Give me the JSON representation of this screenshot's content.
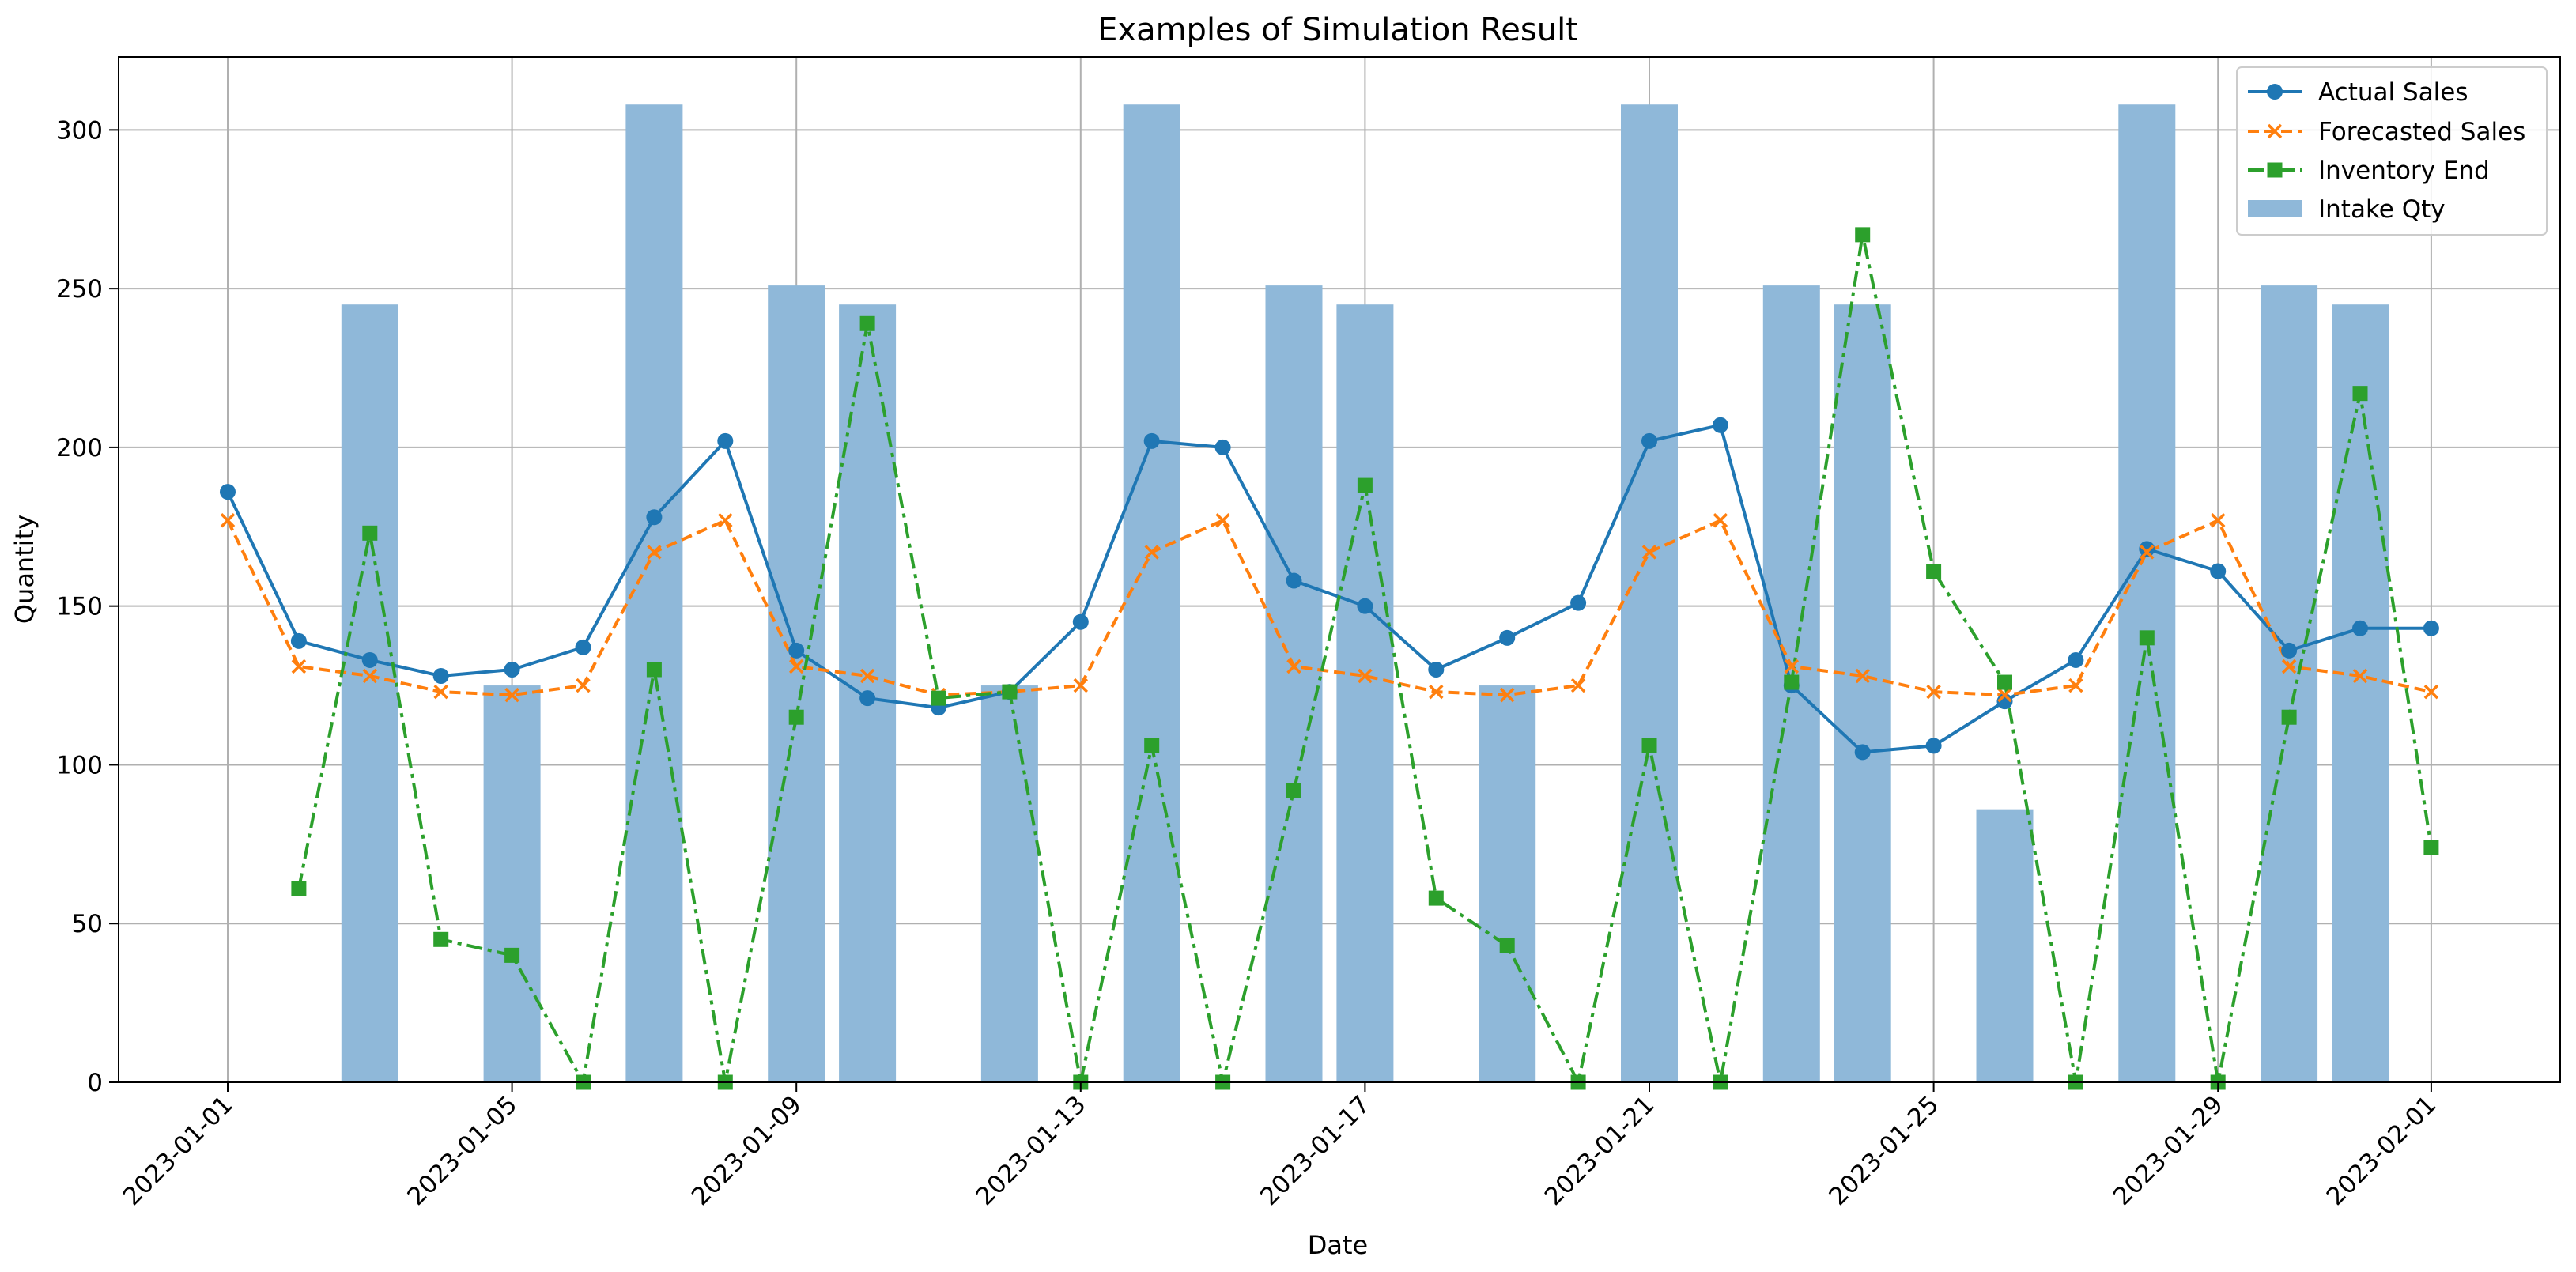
{
  "chart_data": {
    "type": "bar+line",
    "title": "Examples of Simulation Result",
    "xlabel": "Date",
    "ylabel": "Quantity",
    "ylim": [
      0,
      323
    ],
    "grid": true,
    "legend_position": "top-right",
    "x_start": "2023-01-01",
    "x_end": "2023-02-01",
    "dates": [
      "2023-01-01",
      "2023-01-02",
      "2023-01-03",
      "2023-01-04",
      "2023-01-05",
      "2023-01-06",
      "2023-01-07",
      "2023-01-08",
      "2023-01-09",
      "2023-01-10",
      "2023-01-11",
      "2023-01-12",
      "2023-01-13",
      "2023-01-14",
      "2023-01-15",
      "2023-01-16",
      "2023-01-17",
      "2023-01-18",
      "2023-01-19",
      "2023-01-20",
      "2023-01-21",
      "2023-01-22",
      "2023-01-23",
      "2023-01-24",
      "2023-01-25",
      "2023-01-26",
      "2023-01-27",
      "2023-01-28",
      "2023-01-29",
      "2023-01-30",
      "2023-01-31",
      "2023-02-01"
    ],
    "x_ticks": [
      "2023-01-01",
      "2023-01-05",
      "2023-01-09",
      "2023-01-13",
      "2023-01-17",
      "2023-01-21",
      "2023-01-25",
      "2023-01-29",
      "2023-02-01"
    ],
    "y_ticks": [
      0,
      50,
      100,
      150,
      200,
      250,
      300
    ],
    "bar_series": {
      "name": "Intake Qty",
      "color": "#8fb8d9",
      "values": [
        0,
        0,
        245,
        0,
        125,
        0,
        308,
        0,
        251,
        245,
        0,
        125,
        0,
        308,
        0,
        251,
        245,
        0,
        125,
        0,
        308,
        0,
        251,
        245,
        0,
        86,
        0,
        308,
        0,
        251,
        245,
        0
      ]
    },
    "series": [
      {
        "name": "Actual Sales",
        "color": "#1f77b4",
        "style": "solid",
        "marker": "circle",
        "values": [
          186,
          139,
          133,
          128,
          130,
          137,
          178,
          202,
          136,
          121,
          118,
          123,
          145,
          202,
          200,
          158,
          150,
          130,
          140,
          151,
          202,
          207,
          125,
          104,
          106,
          120,
          133,
          168,
          161,
          136,
          143,
          143
        ]
      },
      {
        "name": "Forecasted Sales",
        "color": "#ff7f0e",
        "style": "dashed",
        "marker": "x",
        "values": [
          177,
          131,
          128,
          123,
          122,
          125,
          167,
          177,
          131,
          128,
          122,
          123,
          125,
          167,
          177,
          131,
          128,
          123,
          122,
          125,
          167,
          177,
          131,
          128,
          123,
          122,
          125,
          167,
          177,
          131,
          128,
          123
        ]
      },
      {
        "name": "Inventory End",
        "color": "#2ca02c",
        "style": "dashdot",
        "marker": "square",
        "values": [
          null,
          61,
          173,
          45,
          40,
          0,
          130,
          0,
          115,
          239,
          121,
          123,
          0,
          106,
          0,
          92,
          188,
          58,
          43,
          0,
          106,
          0,
          126,
          267,
          161,
          126,
          0,
          140,
          0,
          115,
          217,
          74
        ]
      }
    ]
  }
}
